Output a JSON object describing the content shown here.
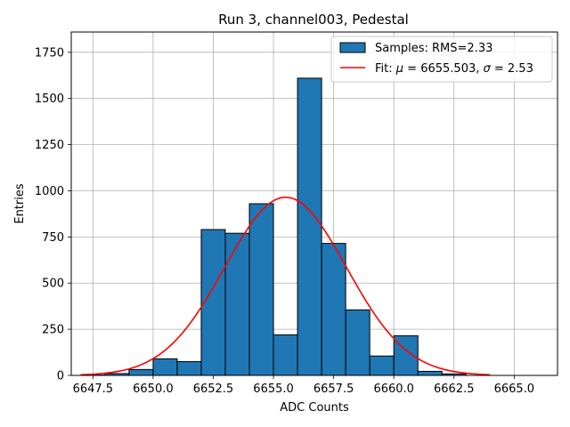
{
  "chart_data": {
    "type": "bar",
    "title": "Run 3, channel003, Pedestal",
    "xlabel": "ADC Counts",
    "ylabel": "Entries",
    "xlim": [
      6646.6,
      6666.8
    ],
    "ylim": [
      0,
      1860
    ],
    "xticks": [
      6647.5,
      6650.0,
      6652.5,
      6655.0,
      6657.5,
      6660.0,
      6662.5,
      6665.0
    ],
    "xtick_labels": [
      "6647.5",
      "6650.0",
      "6652.5",
      "6655.0",
      "6657.5",
      "6660.0",
      "6662.5",
      "6665.0"
    ],
    "yticks": [
      0,
      250,
      500,
      750,
      1000,
      1250,
      1500,
      1750
    ],
    "ytick_labels": [
      "0",
      "250",
      "500",
      "750",
      "1000",
      "1250",
      "1500",
      "1750"
    ],
    "grid": true,
    "legend_position": "top-right",
    "series": [
      {
        "name": "Samples: RMS=2.33",
        "type": "histogram",
        "color": "#1f77b4",
        "bins": [
          {
            "x0": 6647,
            "x1": 6648,
            "value": 2
          },
          {
            "x0": 6648,
            "x1": 6649,
            "value": 10
          },
          {
            "x0": 6649,
            "x1": 6650,
            "value": 32
          },
          {
            "x0": 6650,
            "x1": 6651,
            "value": 90
          },
          {
            "x0": 6651,
            "x1": 6652,
            "value": 75
          },
          {
            "x0": 6652,
            "x1": 6653,
            "value": 790
          },
          {
            "x0": 6653,
            "x1": 6654,
            "value": 770
          },
          {
            "x0": 6654,
            "x1": 6655,
            "value": 930
          },
          {
            "x0": 6655,
            "x1": 6656,
            "value": 220
          },
          {
            "x0": 6656,
            "x1": 6657,
            "value": 1610
          },
          {
            "x0": 6657,
            "x1": 6658,
            "value": 715
          },
          {
            "x0": 6658,
            "x1": 6659,
            "value": 355
          },
          {
            "x0": 6659,
            "x1": 6660,
            "value": 105
          },
          {
            "x0": 6660,
            "x1": 6661,
            "value": 215
          },
          {
            "x0": 6661,
            "x1": 6662,
            "value": 22
          },
          {
            "x0": 6662,
            "x1": 6663,
            "value": 8
          }
        ]
      },
      {
        "name": "Fit: μ = 6655.503, σ = 2.53",
        "type": "line",
        "color": "#ff0000",
        "function": "gaussian",
        "mu": 6655.503,
        "sigma": 2.53,
        "amplitude": 965,
        "x_range": [
          6647.0,
          6664.0
        ]
      }
    ],
    "legend": {
      "label_hist_text": "Samples: RMS=2.33",
      "label_fit_prefix": "Fit: ",
      "label_fit_mu_sym": "μ",
      "label_fit_mid": " = 6655.503, ",
      "label_fit_sigma_sym": "σ",
      "label_fit_suffix": " = 2.53"
    }
  }
}
